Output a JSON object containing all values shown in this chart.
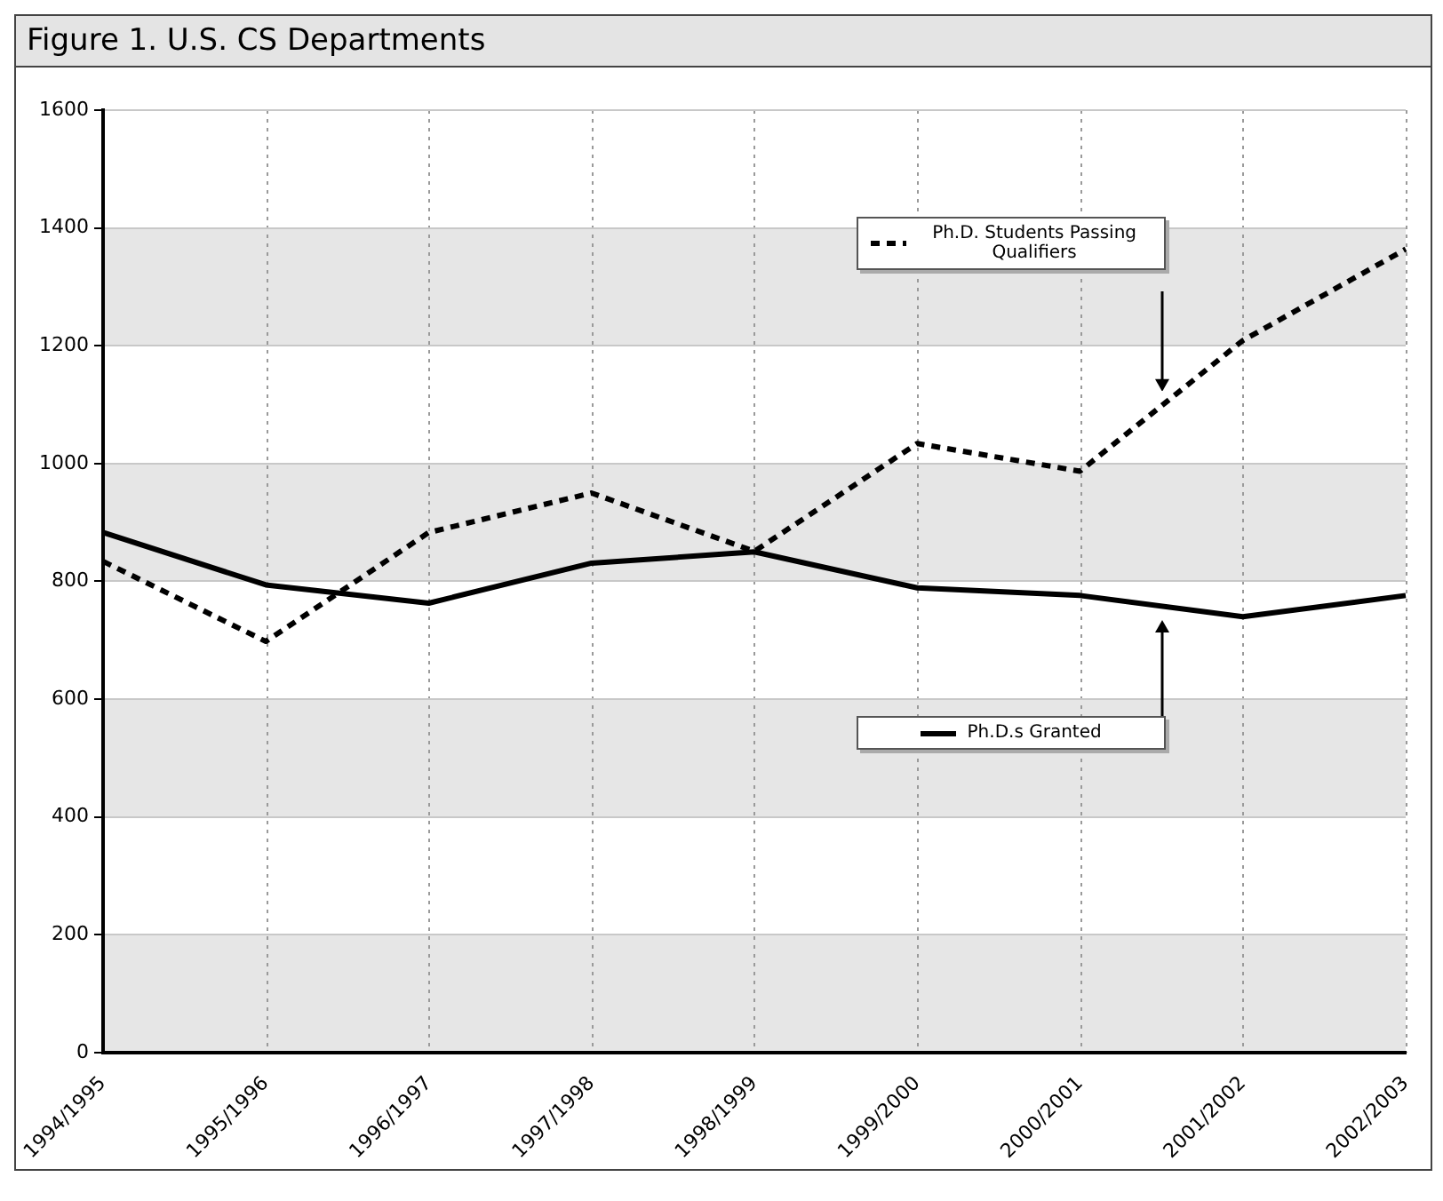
{
  "chart_data": {
    "type": "line",
    "title": "Figure 1. U.S. CS Departments",
    "categories": [
      "1994/1995",
      "1995/1996",
      "1996/1997",
      "1997/1998",
      "1998/1999",
      "1999/2000",
      "2000/2001",
      "2001/2002",
      "2002/2003"
    ],
    "series": [
      {
        "name": "Ph.D.s Granted",
        "color": "#000000",
        "line_style": "solid",
        "values": [
          883,
          794,
          763,
          831,
          850,
          789,
          776,
          740,
          776
        ]
      },
      {
        "name": "Ph.D. Students Passing Qualifiers",
        "color": "#000000",
        "line_style": "dashed",
        "values": [
          834,
          698,
          883,
          950,
          851,
          1034,
          987,
          1209,
          1364
        ]
      }
    ],
    "ylim": [
      0,
      1600
    ],
    "yticks": [
      0,
      200,
      400,
      600,
      800,
      1000,
      1200,
      1400,
      1600
    ],
    "bands": [
      {
        "axis": "y",
        "from": 0,
        "to": 200,
        "color": "#e6e6e6"
      },
      {
        "axis": "y",
        "from": 400,
        "to": 600,
        "color": "#e6e6e6"
      },
      {
        "axis": "y",
        "from": 800,
        "to": 1000,
        "color": "#e6e6e6"
      },
      {
        "axis": "y",
        "from": 1200,
        "to": 1400,
        "color": "#e6e6e6"
      }
    ],
    "grid": true,
    "legend": "right",
    "marker": "none"
  }
}
